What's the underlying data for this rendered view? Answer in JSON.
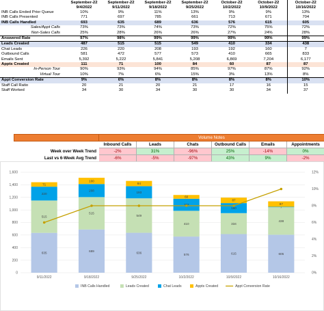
{
  "kpi_table": {
    "headers": [
      "September-22\n9/4/2022",
      "September-22\n9/11/2022",
      "September-22\n9/18/2022",
      "September-22\n9/25/2022",
      "October-22\n10/2/2022",
      "October-22\n10/9/2022",
      "October-22\n10/16/2022"
    ],
    "rows": [
      {
        "label": "INB Calls Ended Prior Queue",
        "values": [
          "10%",
          "9%",
          "11%",
          "13%",
          "9%",
          "9%",
          "13%"
        ]
      },
      {
        "label": "INB Calls Presented",
        "values": [
          "771",
          "697",
          "785",
          "661",
          "713",
          "671",
          "704"
        ]
      },
      {
        "label": "INB Calls Handled",
        "values": [
          "693",
          "635",
          "689",
          "636",
          "576",
          "615",
          "605"
        ]
      },
      {
        "label": "Sales/Appt Calls",
        "values": [
          "73%",
          "73%",
          "74%",
          "73%",
          "72%",
          "75%",
          "72%"
        ]
      },
      {
        "label": "Non-Sales Calls",
        "values": [
          "25%",
          "28%",
          "26%",
          "26%",
          "27%",
          "24%",
          "28%"
        ]
      },
      {
        "label": "Answered Rate",
        "values": [
          "97%",
          "98%",
          "99%",
          "99%",
          "99%",
          "99%",
          "99%"
        ]
      },
      {
        "label": "Leads Created",
        "values": [
          "487",
          "515",
          "515",
          "549",
          "410",
          "334",
          "438"
        ]
      },
      {
        "label": "Chat Leads",
        "values": [
          "226",
          "220",
          "208",
          "193",
          "192",
          "160",
          "7"
        ]
      },
      {
        "label": "Outbound Calls",
        "values": [
          "581",
          "472",
          "577",
          "573",
          "410",
          "665",
          "833"
        ]
      },
      {
        "label": "Emails Sent",
        "values": [
          "5,392",
          "5,222",
          "5,841",
          "5,208",
          "6,869",
          "7,204",
          "6,177"
        ]
      },
      {
        "label": "Appts Created",
        "values": [
          "111",
          "71",
          "100",
          "84",
          "60",
          "87",
          "87"
        ]
      },
      {
        "label": "In-Person Tour",
        "values": [
          "90%",
          "93%",
          "94%",
          "85%",
          "97%",
          "87%",
          "92%"
        ]
      },
      {
        "label": "Virtual Tour",
        "values": [
          "10%",
          "7%",
          "6%",
          "15%",
          "3%",
          "13%",
          "8%"
        ]
      },
      {
        "label": "Appt Conversion Rate",
        "values": [
          "9%",
          "6%",
          "8%",
          "8%",
          "8%",
          "8%",
          "10%"
        ]
      },
      {
        "label": "Staff Call Ratio",
        "values": [
          "20",
          "21",
          "20",
          "21",
          "17",
          "16",
          "15"
        ]
      },
      {
        "label": "Staff Worked",
        "values": [
          "34",
          "30",
          "34",
          "30",
          "30",
          "34",
          "37"
        ]
      }
    ]
  },
  "volume_notes": {
    "title": "Volume Notes",
    "columns": [
      "Inbound Calls",
      "Leads",
      "Chats",
      "Outbound Calls",
      "Emails",
      "Appointments"
    ],
    "rows": [
      {
        "label": "Week over Week Trend",
        "values": [
          "-2%",
          "31%",
          "-96%",
          "25%",
          "-14%",
          "0%"
        ],
        "status": [
          "bad",
          "good",
          "bad",
          "good",
          "bad",
          "good"
        ]
      },
      {
        "label": "Last vs 6-Week Avg Trend",
        "values": [
          "-6%",
          "-5%",
          "-97%",
          "43%",
          "9%",
          "-2%"
        ],
        "status": [
          "bad",
          "bad",
          "bad",
          "good",
          "good",
          "bad"
        ]
      }
    ]
  },
  "chart_data": {
    "type": "bar",
    "stacked": true,
    "categories": [
      "9/11/2022",
      "9/18/2022",
      "9/25/2022",
      "10/2/2022",
      "10/9/2022",
      "10/16/2022"
    ],
    "series": [
      {
        "name": "INB Calls Handled",
        "values": [
          635,
          689,
          636,
          576,
          615,
          605
        ],
        "color": "#b4c7e7"
      },
      {
        "name": "Leads Created",
        "values": [
          515,
          515,
          549,
          410,
          334,
          438
        ],
        "color": "#c5e0b4"
      },
      {
        "name": "Chat Leads",
        "values": [
          220,
          208,
          193,
          192,
          160,
          7
        ],
        "color": "#00a2e8"
      },
      {
        "name": "Appts Created",
        "values": [
          71,
          100,
          84,
          60,
          87,
          87
        ],
        "color": "#ffc000"
      }
    ],
    "line_series": {
      "name": "Appt Conversion Rate",
      "values": [
        6,
        8,
        8,
        8,
        8,
        10
      ],
      "axis": "right",
      "color": "#c5a000"
    },
    "yticks": [
      "0",
      "200",
      "400",
      "600",
      "800",
      "1,000",
      "1,200",
      "1,400",
      "1,600"
    ],
    "ylim": [
      0,
      1600
    ],
    "y2ticks": [
      "0%",
      "2%",
      "4%",
      "6%",
      "8%",
      "10%",
      "12%"
    ],
    "y2lim": [
      0,
      12
    ],
    "grid": true,
    "legend_position": "bottom"
  }
}
